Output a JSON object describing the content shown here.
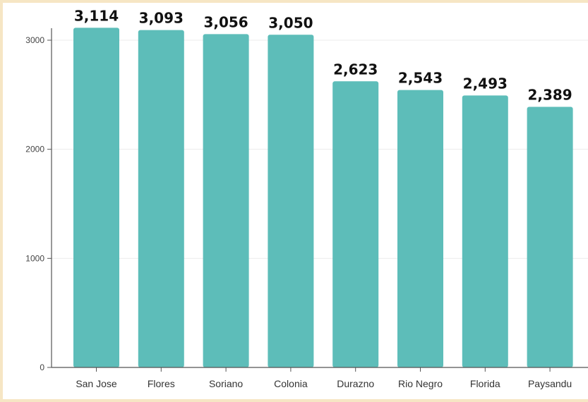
{
  "colors": {
    "bar": "#5dbdb9",
    "grid": "#ececec",
    "axis": "#555555",
    "frame": "#f6e6c4"
  },
  "chart_data": {
    "type": "bar",
    "title": "",
    "xlabel": "",
    "ylabel": "",
    "categories": [
      "San Jose",
      "Flores",
      "Soriano",
      "Colonia",
      "Durazno",
      "Rio Negro",
      "Florida",
      "Paysandu"
    ],
    "values": [
      3114,
      3093,
      3056,
      3050,
      2623,
      2543,
      2493,
      2389
    ],
    "value_labels": [
      "3,114",
      "3,093",
      "3,056",
      "3,050",
      "2,623",
      "2,543",
      "2,493",
      "2,389"
    ],
    "ylim": [
      0,
      3000
    ],
    "yticks": [
      0,
      1000,
      2000,
      3000
    ],
    "ytick_labels": [
      "0",
      "1000",
      "2000",
      "3000"
    ],
    "grid": true,
    "legend": "none"
  }
}
